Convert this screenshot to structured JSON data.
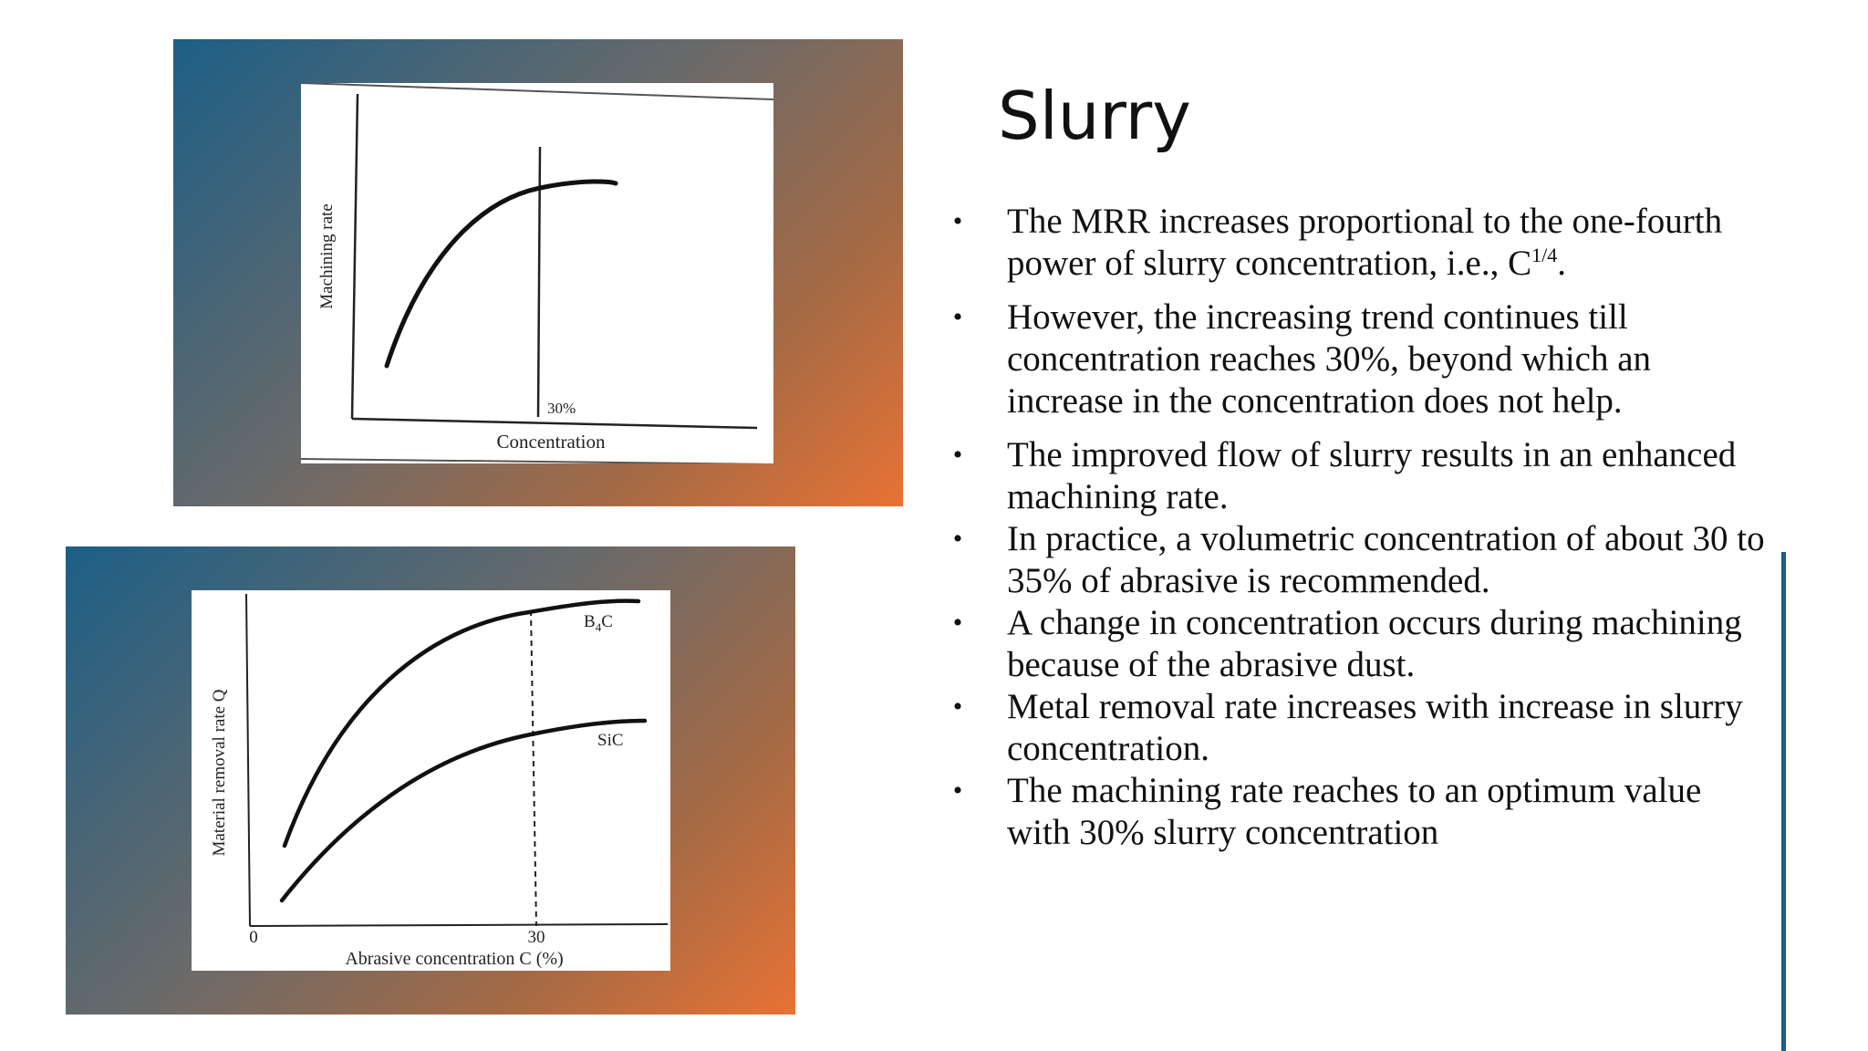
{
  "slide": {
    "title": "Slurry",
    "bullets": [
      {
        "text": "The MRR increases proportional to the one-fourth power of slurry concentration, i.e., C",
        "sup": "1/4",
        "after": "."
      },
      {
        "text": "However, the increasing trend continues till concentration reaches 30%, beyond which an increase in the concentration does not help."
      },
      {
        "text": "The improved flow of slurry results in an enhanced machining rate."
      },
      {
        "text": "In practice, a volumetric concentration of about 30 to 35% of abrasive is recommended."
      },
      {
        "text": "A change in concentration occurs during machining because of the abrasive dust."
      },
      {
        "text": "Metal removal rate increases with increase in slurry concentration."
      },
      {
        "text": "The machining rate reaches to an optimum value with 30% slurry concentration"
      }
    ],
    "bullet_glyph": "•"
  },
  "figures": {
    "top": {
      "ylabel": "Machining rate",
      "xlabel": "Concentration",
      "marker_label": "30%"
    },
    "bottom": {
      "ylabel": "Material removal rate Q",
      "xlabel": "Abrasive concentration C (%)",
      "tick_0": "0",
      "tick_30": "30",
      "series_b4c": "B",
      "series_b4c_sub": "4",
      "series_b4c_end": "C",
      "series_sic": "SiC"
    }
  },
  "colors": {
    "frame_start": "#1c5f86",
    "frame_end": "#e87234",
    "accent_rule": "#1d5e85"
  }
}
